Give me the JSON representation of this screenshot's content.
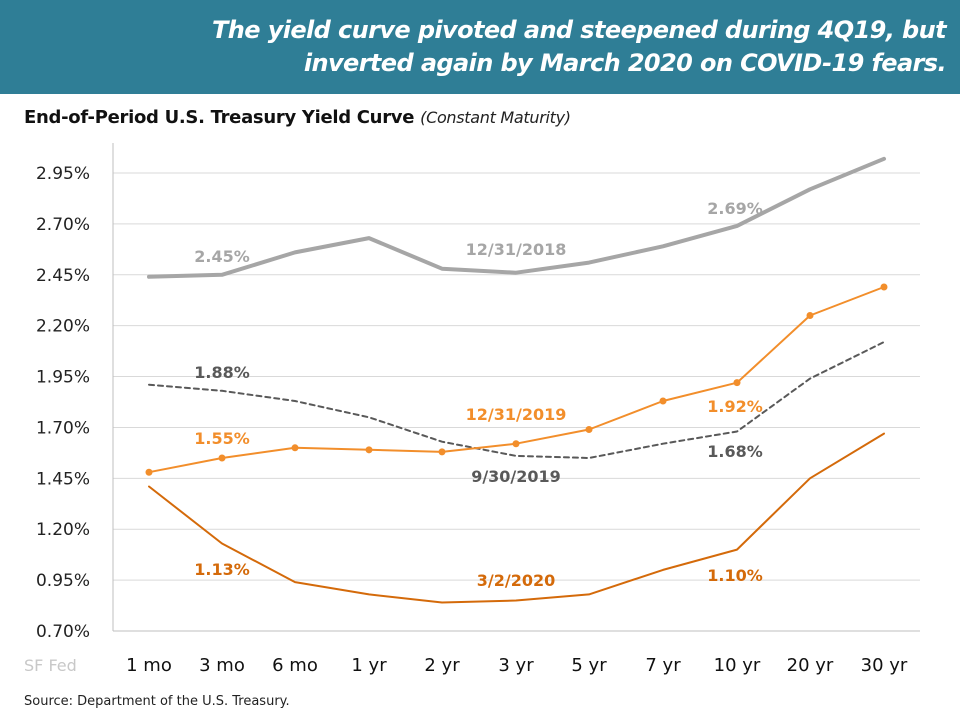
{
  "banner": {
    "line1": "The yield curve pivoted and steepened during 4Q19, but",
    "line2": "inverted again by March 2020 on COVID-19 fears.",
    "background": "#2f7e96"
  },
  "chart_title": "End-of-Period U.S. Treasury Yield Curve",
  "chart_subtitle": "(Constant Maturity)",
  "source": "Source: Department of the U.S. Treasury.",
  "watermark": "SF Fed",
  "chart_data": {
    "type": "line",
    "title": "End-of-Period U.S. Treasury Yield Curve",
    "subtitle": "(Constant Maturity)",
    "categories": [
      "1 mo",
      "3 mo",
      "6 mo",
      "1 yr",
      "2 yr",
      "3 yr",
      "5 yr",
      "7 yr",
      "10 yr",
      "20 yr",
      "30 yr"
    ],
    "ylim": [
      0.7,
      3.05
    ],
    "yticks": [
      0.7,
      0.95,
      1.2,
      1.45,
      1.7,
      1.95,
      2.2,
      2.45,
      2.7,
      2.95
    ],
    "ytick_labels": [
      "0.70%",
      "0.95%",
      "1.20%",
      "1.45%",
      "1.70%",
      "1.95%",
      "2.20%",
      "2.45%",
      "2.70%",
      "2.95%"
    ],
    "grid": "horizontal",
    "series": [
      {
        "name": "12/31/2018",
        "color": "#a6a6a6",
        "style": "solid-thick",
        "values": [
          2.44,
          2.45,
          2.56,
          2.63,
          2.48,
          2.46,
          2.51,
          2.59,
          2.69,
          2.87,
          3.02
        ]
      },
      {
        "name": "9/30/2019",
        "color": "#595959",
        "style": "dashed",
        "values": [
          1.91,
          1.88,
          1.83,
          1.75,
          1.63,
          1.56,
          1.55,
          1.62,
          1.68,
          1.94,
          2.12
        ]
      },
      {
        "name": "12/31/2019",
        "color": "#f28e2b",
        "style": "solid-markers",
        "values": [
          1.48,
          1.55,
          1.6,
          1.59,
          1.58,
          1.62,
          1.69,
          1.83,
          1.92,
          2.25,
          2.39
        ]
      },
      {
        "name": "3/2/2020",
        "color": "#d46a0a",
        "style": "solid",
        "values": [
          1.41,
          1.13,
          0.94,
          0.88,
          0.84,
          0.85,
          0.88,
          1.0,
          1.1,
          1.45,
          1.67
        ]
      }
    ],
    "annotations": [
      {
        "text": "2.45%",
        "series": "12/31/2018",
        "at": "3 mo",
        "color": "#a6a6a6"
      },
      {
        "text": "2.69%",
        "series": "12/31/2018",
        "at": "10 yr",
        "color": "#a6a6a6"
      },
      {
        "text": "12/31/2018",
        "series": "12/31/2018",
        "at": "3 yr",
        "color": "#a6a6a6"
      },
      {
        "text": "1.88%",
        "series": "9/30/2019",
        "at": "3 mo",
        "color": "#595959"
      },
      {
        "text": "1.68%",
        "series": "9/30/2019",
        "at": "10 yr",
        "color": "#595959"
      },
      {
        "text": "9/30/2019",
        "series": "9/30/2019",
        "at": "3 yr",
        "color": "#595959"
      },
      {
        "text": "1.55%",
        "series": "12/31/2019",
        "at": "3 mo",
        "color": "#f28e2b"
      },
      {
        "text": "1.92%",
        "series": "12/31/2019",
        "at": "10 yr",
        "color": "#f28e2b"
      },
      {
        "text": "12/31/2019",
        "series": "12/31/2019",
        "at": "3 yr",
        "color": "#f28e2b"
      },
      {
        "text": "1.13%",
        "series": "3/2/2020",
        "at": "3 mo",
        "color": "#d46a0a"
      },
      {
        "text": "1.10%",
        "series": "3/2/2020",
        "at": "10 yr",
        "color": "#d46a0a"
      },
      {
        "text": "3/2/2020",
        "series": "3/2/2020",
        "at": "3 yr",
        "color": "#d46a0a"
      }
    ]
  }
}
